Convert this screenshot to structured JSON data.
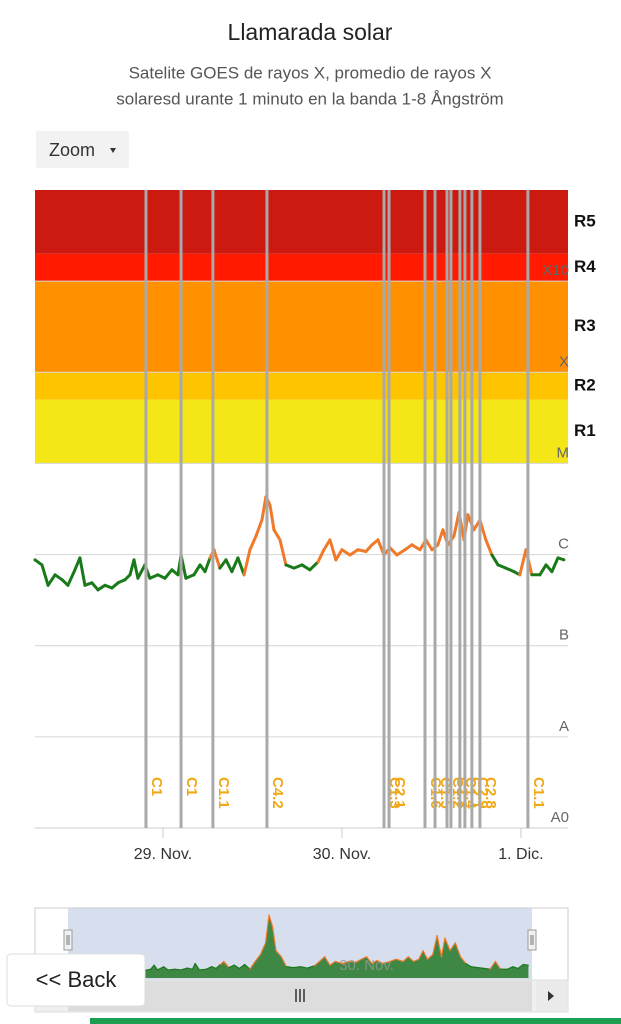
{
  "chart_data": {
    "type": "line",
    "title": "Llamarada solar",
    "subtitle": [
      "Satelite GOES de rayos X, promedio de rayos X",
      "solaresd urante 1 minuto en la banda 1-8 Ångström"
    ],
    "log_y": true,
    "grid": true,
    "color": "#1a7a1a",
    "above_color": "#f07a2a",
    "threshold": 1e-06,
    "ylim": [
      1e-09,
      0.01
    ],
    "yticks": [
      {
        "value": 1e-09,
        "label": "A0"
      },
      {
        "value": 1e-08,
        "label": "A"
      },
      {
        "value": 1e-07,
        "label": "B"
      },
      {
        "value": 1e-06,
        "label": "C"
      },
      {
        "value": 1e-05,
        "label": "M"
      },
      {
        "value": 0.0001,
        "label": "X"
      },
      {
        "value": 0.001,
        "label": "X10"
      }
    ],
    "xlim": [
      -0.715,
      2.263
    ],
    "xticks": [
      {
        "value": 0,
        "label": "29. Nov."
      },
      {
        "value": 1,
        "label": "30. Nov."
      },
      {
        "value": 2,
        "label": "1. Dic."
      }
    ],
    "bands": [
      {
        "from": 1e-05,
        "to": 5e-05,
        "color": "#f5e618",
        "label": "R1"
      },
      {
        "from": 5e-05,
        "to": 0.0001,
        "color": "#ffc400",
        "label": "R2"
      },
      {
        "from": 0.0001,
        "to": 0.001,
        "color": "#ff9000",
        "label": "R3"
      },
      {
        "from": 0.001,
        "to": 0.002,
        "color": "#ff1a00",
        "label": "R4"
      },
      {
        "from": 0.002,
        "to": 0.01,
        "color": "#cc1a10",
        "label": "R5"
      }
    ],
    "x": [
      -0.715,
      -0.676,
      -0.642,
      -0.603,
      -0.564,
      -0.531,
      -0.492,
      -0.464,
      -0.436,
      -0.397,
      -0.363,
      -0.324,
      -0.285,
      -0.251,
      -0.212,
      -0.184,
      -0.162,
      -0.14,
      -0.101,
      -0.073,
      -0.028,
      0.011,
      0.05,
      0.084,
      0.101,
      0.128,
      0.173,
      0.207,
      0.235,
      0.263,
      0.285,
      0.318,
      0.352,
      0.385,
      0.419,
      0.453,
      0.486,
      0.52,
      0.553,
      0.575,
      0.598,
      0.62,
      0.654,
      0.687,
      0.732,
      0.777,
      0.821,
      0.866,
      0.899,
      0.933,
      0.966,
      1.0,
      1.045,
      1.089,
      1.134,
      1.168,
      1.201,
      1.235,
      1.268,
      1.307,
      1.352,
      1.391,
      1.436,
      1.469,
      1.503,
      1.536,
      1.564,
      1.592,
      1.626,
      1.654,
      1.682,
      1.704,
      1.737,
      1.771,
      1.804,
      1.838,
      1.872,
      1.916,
      1.961,
      1.994,
      2.028,
      2.061,
      2.106,
      2.14,
      2.173,
      2.207,
      2.24
    ],
    "values": [
      8.75e-07,
      7.7e-07,
      4.6e-07,
      6e-07,
      5.3e-07,
      4.6e-07,
      6.8e-07,
      9.2e-07,
      4.6e-07,
      4.9e-07,
      4.1e-07,
      4.6e-07,
      4.3e-07,
      4.9e-07,
      5.3e-07,
      6e-07,
      8.75e-07,
      5.5e-07,
      7.7e-07,
      5.5e-07,
      6e-07,
      5.5e-07,
      6.8e-07,
      6e-07,
      9.9e-07,
      5.5e-07,
      6e-07,
      7.7e-07,
      6.5e-07,
      9.2e-07,
      1.13e-06,
      7.1e-07,
      8.75e-07,
      6.5e-07,
      9.2e-07,
      6e-07,
      1.13e-06,
      1.6e-06,
      2.4e-06,
      4.3e-06,
      3.5e-06,
      1.87e-06,
      1.45e-06,
      7.7e-07,
      7.1e-07,
      7.7e-07,
      6.8e-07,
      8.3e-07,
      1.13e-06,
      1.45e-06,
      8.75e-07,
      1.13e-06,
      9.9e-07,
      1.13e-06,
      1.08e-06,
      1.28e-06,
      1.45e-06,
      9.9e-07,
      1.19e-06,
      9.9e-07,
      1.13e-06,
      1.28e-06,
      1.13e-06,
      1.45e-06,
      1.13e-06,
      1.28e-06,
      1.87e-06,
      1.28e-06,
      1.6e-06,
      2.9e-06,
      1.45e-06,
      2.73e-06,
      1.87e-06,
      2.4e-06,
      1.45e-06,
      9.9e-07,
      7.7e-07,
      7.1e-07,
      6.5e-07,
      6e-07,
      1.13e-06,
      6e-07,
      6e-07,
      7.7e-07,
      6.5e-07,
      9.2e-07,
      8.75e-07
    ],
    "events": [
      {
        "x": -0.095,
        "label": "C1"
      },
      {
        "x": 0.101,
        "label": "C1"
      },
      {
        "x": 0.279,
        "label": "C1.1"
      },
      {
        "x": 0.581,
        "label": "C4.2"
      },
      {
        "x": 1.235,
        "label": "C1.3"
      },
      {
        "x": 1.263,
        "label": "C2.1"
      },
      {
        "x": 1.464,
        "label": "C1.6"
      },
      {
        "x": 1.52,
        "label": "C1.5"
      },
      {
        "x": 1.587,
        "label": "C1.2"
      },
      {
        "x": 1.609,
        "label": "C1.8"
      },
      {
        "x": 1.659,
        "label": "C1.4"
      },
      {
        "x": 1.687,
        "label": "C2.1"
      },
      {
        "x": 1.726,
        "label": "C2.9"
      },
      {
        "x": 1.771,
        "label": "C2.8"
      },
      {
        "x": 2.039,
        "label": "C1.1"
      }
    ]
  },
  "zoom_button": "Zoom",
  "back_button": "<< Back"
}
